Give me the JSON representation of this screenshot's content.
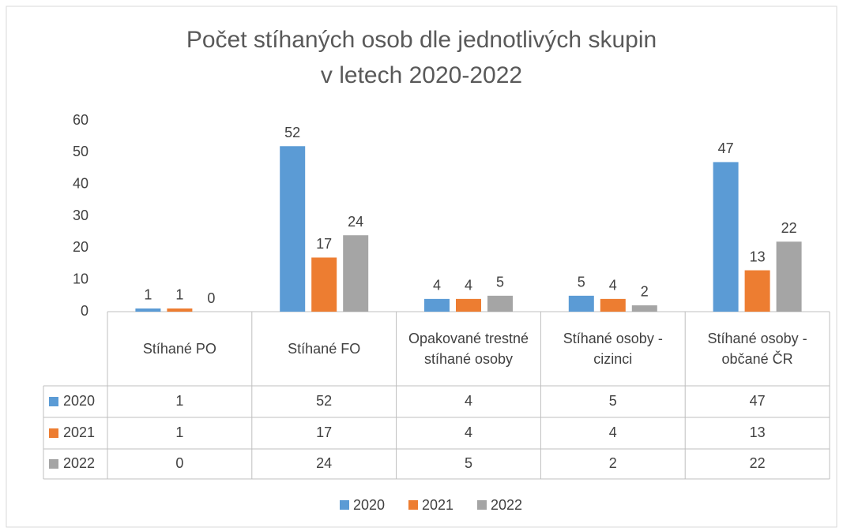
{
  "chart_data": {
    "type": "bar",
    "title": "Počet stíhaných osob dle jednotlivých skupin v letech 2020-2022",
    "categories": [
      "Stíhané PO",
      "Stíhané FO",
      "Opakované trestné stíhané osoby",
      "Stíhané osoby - cizinci",
      "Stíhané osoby - občané ČR"
    ],
    "series": [
      {
        "name": "2020",
        "color": "#5b9bd5",
        "values": [
          1,
          52,
          4,
          5,
          47
        ]
      },
      {
        "name": "2021",
        "color": "#ed7d31",
        "values": [
          1,
          17,
          4,
          4,
          13
        ]
      },
      {
        "name": "2022",
        "color": "#a5a5a5",
        "values": [
          0,
          24,
          5,
          2,
          22
        ]
      }
    ],
    "ylim": [
      0,
      60
    ],
    "yticks": [
      0,
      10,
      20,
      30,
      40,
      50,
      60
    ],
    "grid": false,
    "legend": "bottom"
  }
}
